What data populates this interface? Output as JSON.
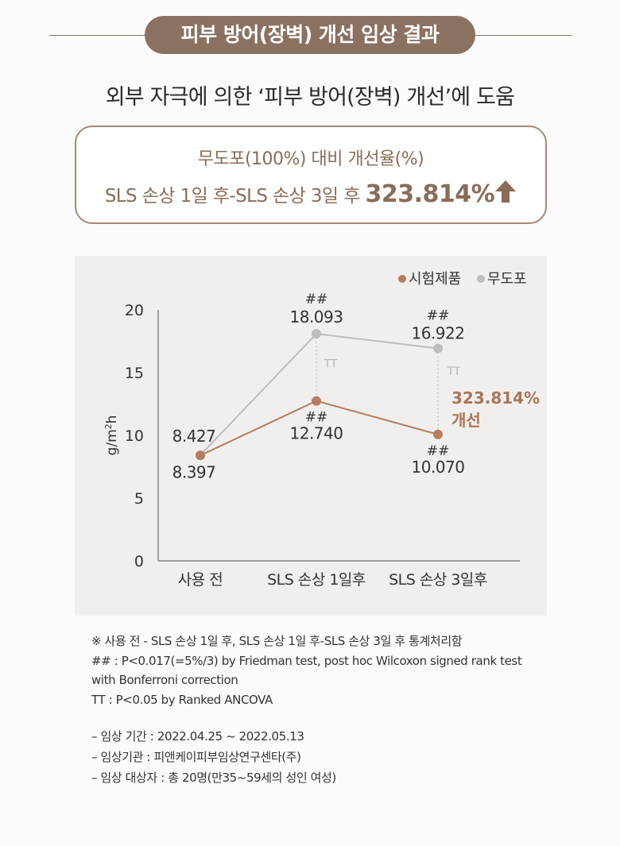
{
  "header": {
    "title": "피부 방어(장벽) 개선 임상 결과",
    "subtitle": "외부 자극에 의한 ‘피부 방어(장벽) 개선’에 도움"
  },
  "summary": {
    "line1": "무도포(100%) 대비 개선율(%)",
    "line2_prefix": "SLS 손상 1일 후-SLS 손상 3일 후",
    "line2_value": "323.814%"
  },
  "colors": {
    "brown": "#b47e5f",
    "gray": "#bdbdbd",
    "accent_text": "#a97556",
    "title_bg": "#8b7160"
  },
  "chart_data": {
    "type": "line",
    "categories": [
      "사용 전",
      "SLS 손상 1일후",
      "SLS 손상 3일후"
    ],
    "ylabel": "g/m2h",
    "ylim": [
      0,
      20
    ],
    "yticks": [
      "0",
      "5",
      "10",
      "15",
      "20"
    ],
    "series": [
      {
        "name": "시험제품",
        "color": "#b47e5f",
        "values": [
          8.397,
          12.74,
          10.07
        ],
        "labels": [
          "8.397",
          "12.740",
          "10.070"
        ]
      },
      {
        "name": "무도포",
        "color": "#bdbdbd",
        "values": [
          8.427,
          18.093,
          16.922
        ],
        "labels": [
          "8.427",
          "18.093",
          "16.922"
        ]
      }
    ],
    "significance_markers": [
      "##",
      "##",
      "##",
      "##"
    ],
    "tt_markers": [
      "TT",
      "TT"
    ],
    "annotation": {
      "line1": "323.814%",
      "line2": "개선"
    },
    "legend_position": "top-right"
  },
  "notes": {
    "line1": "※ 사용 전 - SLS 손상 1일 후, SLS 손상 1일 후-SLS 손상 3일 후 통계처리함",
    "line2": "## : P<0.017(=5%/3) by Friedman test, post hoc Wilcoxon signed rank test",
    "line3": "with Bonferroni correction",
    "line4": "TT : P<0.05 by Ranked ANCOVA"
  },
  "study_info": {
    "period": "–  임상 기간 : 2022.04.25 ~ 2022.05.13",
    "institution": "–  임상기관 : 피앤케이피부임상연구센타(주)",
    "subjects": "–  임상 대상자 : 총 20명(만35~59세의 성인 여성)"
  }
}
